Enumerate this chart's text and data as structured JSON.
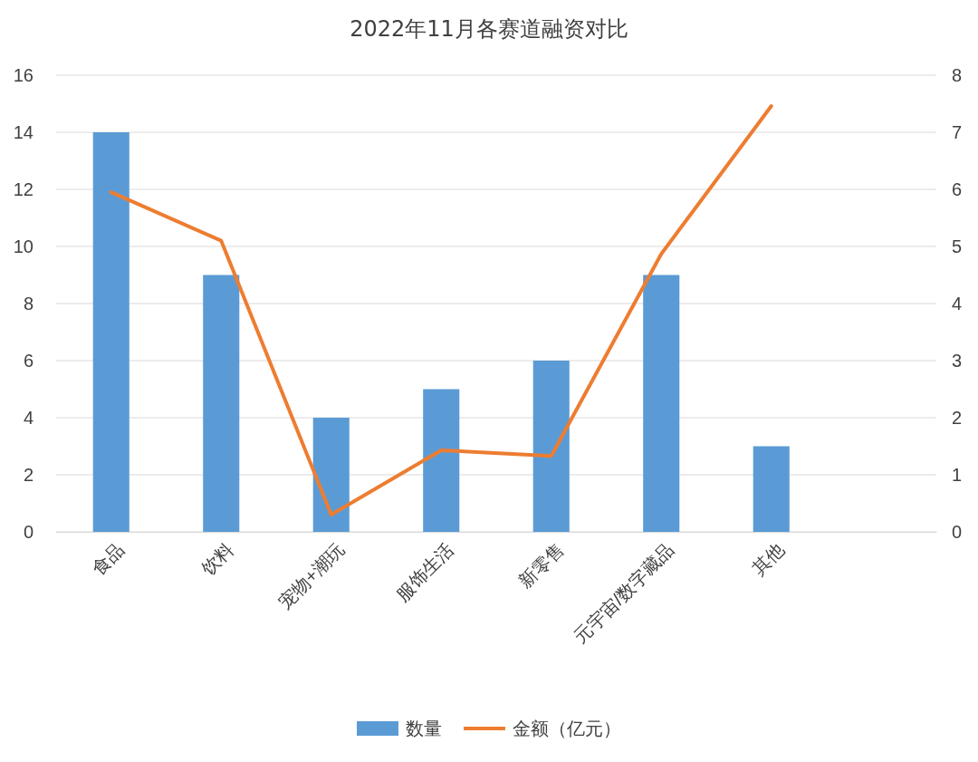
{
  "chart_data": {
    "type": "bar",
    "title": "2022年11月各赛道融资对比",
    "categories": [
      "食品",
      "饮料",
      "宠物+潮玩",
      "服饰生活",
      "新零售",
      "元宇宙/数字藏品",
      "其他",
      null
    ],
    "series": [
      {
        "name": "数量",
        "color": "#5b9bd5",
        "values": [
          14,
          9,
          4,
          5,
          6,
          9,
          3,
          null
        ]
      },
      {
        "name": "金额（亿元）",
        "type": "line",
        "axis": "y2",
        "color": "#ed7d31",
        "values": [
          5.95,
          5.1,
          0.3,
          1.43,
          1.33,
          4.87,
          7.46,
          null
        ]
      }
    ],
    "ylim": [
      0,
      16
    ],
    "yticks": [
      0,
      2,
      4,
      6,
      8,
      10,
      12,
      14,
      16
    ],
    "y2lim": [
      0,
      8
    ],
    "y2ticks": [
      0,
      1,
      2,
      3,
      4,
      5,
      6,
      7,
      8
    ],
    "grid": "y",
    "legend": "bottom",
    "marker": "none",
    "line_style": "solid"
  }
}
